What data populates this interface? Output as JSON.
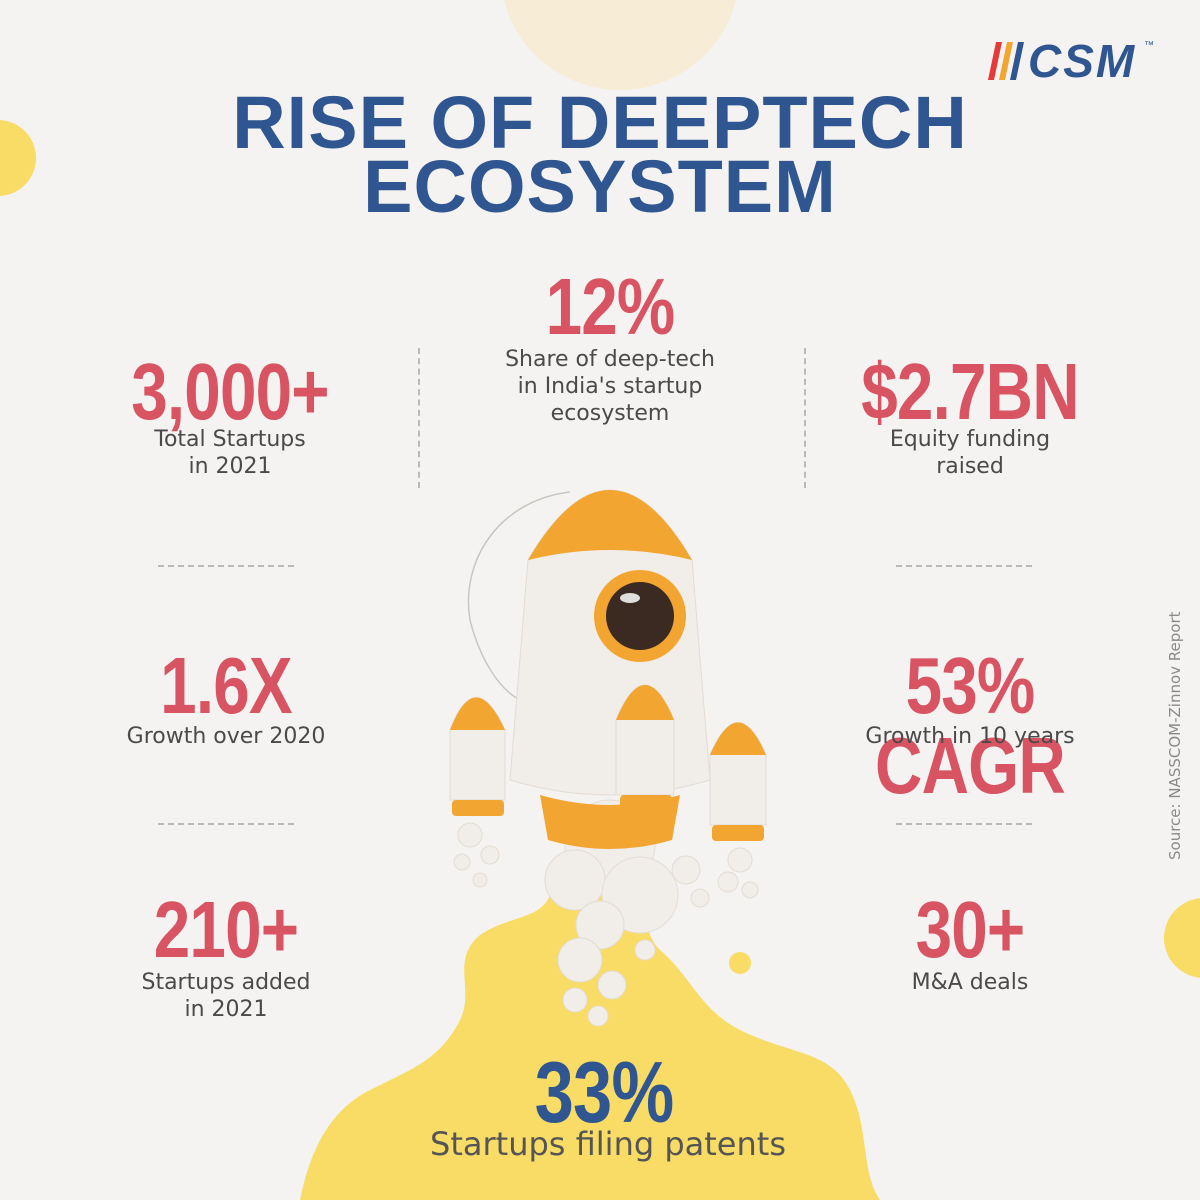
{
  "brand": {
    "logo_text": "CSM",
    "trademark": "™"
  },
  "title": {
    "line1": "RISE OF DEEPTECH",
    "line2": "ECOSYSTEM"
  },
  "stats": {
    "total_startups": {
      "value": "3,000+",
      "label_line1": "Total Startups",
      "label_line2": "in 2021"
    },
    "share": {
      "value": "12%",
      "label_line1": "Share of deep-tech",
      "label_line2": "in India's startup",
      "label_line3": "ecosystem"
    },
    "funding": {
      "value": "$2.7BN",
      "label_line1": "Equity funding",
      "label_line2": "raised"
    },
    "growth": {
      "value": "1.6X",
      "label_line1": "Growth over 2020"
    },
    "cagr": {
      "value": "53% CAGR",
      "label_line1": "Growth in 10 years"
    },
    "added": {
      "value": "210+",
      "label_line1": "Startups added",
      "label_line2": "in 2021"
    },
    "mna": {
      "value": "30+",
      "label_line1": "M&A deals"
    },
    "patents": {
      "value": "33%",
      "label_line1": "Startups filing patents"
    }
  },
  "source": "Source: NASSCOM-Zinnov Report",
  "colors": {
    "title": "#2f5690",
    "stat": "#d85463",
    "patent_stat": "#2f5690",
    "label": "#4a4a4a",
    "background": "#f4f3f1",
    "yellow": "#f8dc66",
    "rocket_orange": "#f2a530",
    "rocket_body": "#f1ede8"
  },
  "illustration": "rocket-launch"
}
